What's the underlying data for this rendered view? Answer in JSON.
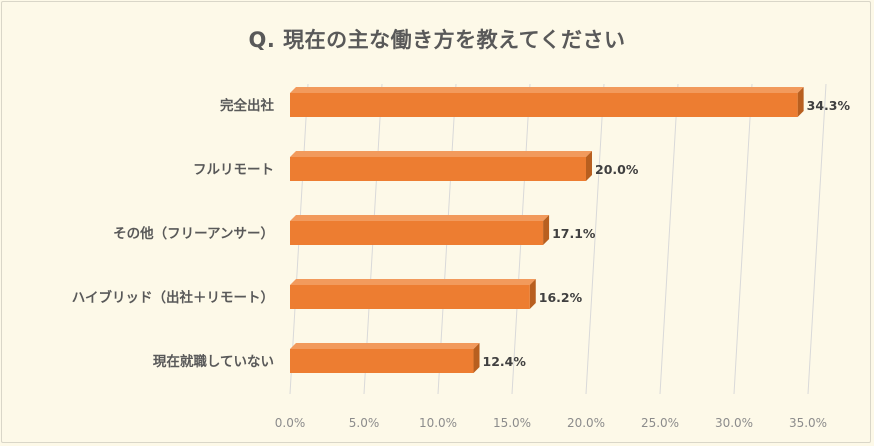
{
  "chart_data": {
    "type": "bar",
    "orientation": "horizontal",
    "title": "Q. 現在の主な働き方を教えてください",
    "categories": [
      "完全出社",
      "フルリモート",
      "その他（フリーアンサー）",
      "ハイブリッド（出社＋リモート）",
      "現在就職していない"
    ],
    "values": [
      34.3,
      20.0,
      17.1,
      16.2,
      12.4
    ],
    "data_labels": [
      "34.3%",
      "20.0%",
      "17.1%",
      "16.2%",
      "12.4%"
    ],
    "xlim": [
      0,
      35
    ],
    "xticks": [
      0,
      5,
      10,
      15,
      20,
      25,
      30,
      35
    ],
    "xtick_labels": [
      "0.0%",
      "5.0%",
      "10.0%",
      "15.0%",
      "20.0%",
      "25.0%",
      "30.0%",
      "35.0%"
    ],
    "grid": true,
    "legend": "none",
    "bar_color": "#ed7d31",
    "bar_shade_color": "#b85f1f"
  }
}
